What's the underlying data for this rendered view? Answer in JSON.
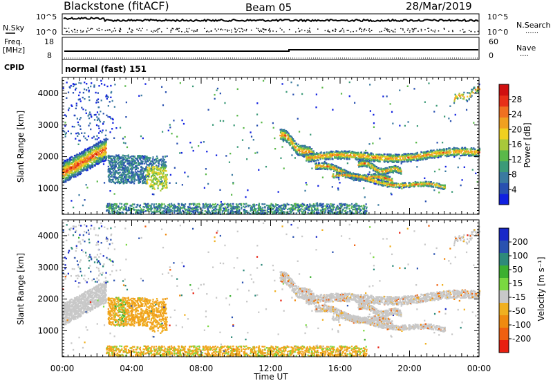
{
  "header": {
    "station": "Blackstone (fitACF)",
    "beam": "Beam 05",
    "date": "28/Mar/2019"
  },
  "summary_panel": {
    "left_labels": {
      "nsky": "N.Sky",
      "freq": "Freq.",
      "freq_unit": "[MHz]",
      "cpid": "CPID"
    },
    "right_labels": {
      "nsearch": "N.Search",
      "nsearch_line": "......",
      "nave": "Nave",
      "nave_line": "...."
    },
    "nsky_ticks": {
      "top": "10^5",
      "bottom": "10^0"
    },
    "freq_ticks": {
      "top": "18",
      "bottom": "8"
    },
    "nave_ticks": {
      "top": "60",
      "bottom": "0"
    },
    "cpid_text": "normal (fast) 151"
  },
  "chart_data": [
    {
      "type": "heatmap",
      "panel": "power",
      "ylabel": "Slant Range [km]",
      "ylim": [
        180,
        4500
      ],
      "yticks": [
        "1000",
        "2000",
        "3000",
        "4000"
      ],
      "xlabel": "Time UT",
      "xlim_hours": [
        0,
        24
      ],
      "xticks": [
        "00:00",
        "04:00",
        "08:00",
        "12:00",
        "16:00",
        "20:00",
        "00:00"
      ],
      "colorbar": {
        "label": "Power [dB]",
        "ticks": [
          "4",
          "8",
          "12",
          "16",
          "20",
          "24",
          "28"
        ],
        "colors": [
          "#1020e0",
          "#2850b0",
          "#3a7aa0",
          "#3c9a78",
          "#5ab84a",
          "#a8c83a",
          "#f0d020",
          "#f0a020",
          "#f07020",
          "#e83018",
          "#d01010"
        ]
      }
    },
    {
      "type": "heatmap",
      "panel": "velocity",
      "ylabel": "Slant Range [km]",
      "ylim": [
        180,
        4500
      ],
      "yticks": [
        "1000",
        "2000",
        "3000",
        "4000"
      ],
      "xlabel": "Time UT",
      "xlim_hours": [
        0,
        24
      ],
      "xticks": [
        "00:00",
        "04:00",
        "08:00",
        "12:00",
        "16:00",
        "20:00",
        "00:00"
      ],
      "colorbar": {
        "label": "Velocity [m s⁻¹]",
        "ticks": [
          "200",
          "100",
          "50",
          "15",
          "-15",
          "-50",
          "-100",
          "-200"
        ],
        "colors": [
          "#1828c8",
          "#2a52b0",
          "#2e8a7a",
          "#3cb030",
          "#7ad840",
          "#c8c8c8",
          "#f0b020",
          "#f08a10",
          "#f06010",
          "#e82010"
        ]
      }
    }
  ],
  "colors": {
    "ground_scatter": "#c0c0c0",
    "axis": "#000000"
  }
}
